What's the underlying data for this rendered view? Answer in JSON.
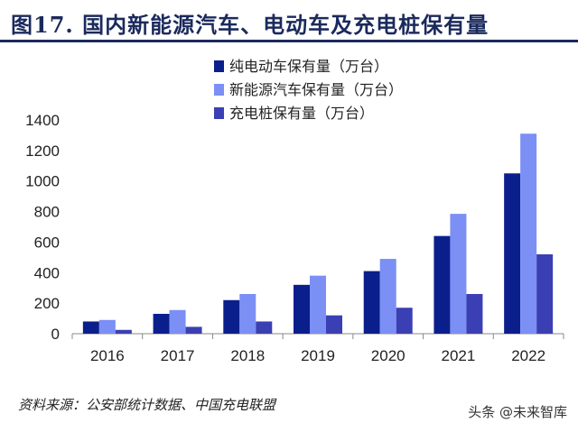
{
  "header": {
    "title": "图17. 国内新能源汽车、电动车及充电桩保有量"
  },
  "chart_data": {
    "type": "bar",
    "categories": [
      "2016",
      "2017",
      "2018",
      "2019",
      "2020",
      "2021",
      "2022"
    ],
    "series": [
      {
        "name": "纯电动车保有量（万台）",
        "color": "#0b1f8c",
        "values": [
          80,
          130,
          220,
          320,
          410,
          640,
          1050
        ]
      },
      {
        "name": "新能源汽车保有量（万台）",
        "color": "#7b8ff5",
        "values": [
          90,
          155,
          260,
          380,
          490,
          785,
          1310
        ]
      },
      {
        "name": "充电桩保有量（万台）",
        "color": "#3b3fb4",
        "values": [
          25,
          45,
          80,
          120,
          170,
          260,
          520
        ]
      }
    ],
    "ylim": [
      0,
      1400
    ],
    "yticks": [
      0,
      200,
      400,
      600,
      800,
      1000,
      1200,
      1400
    ],
    "grid": false,
    "legend_position": "top-center",
    "xlabel": "",
    "ylabel": ""
  },
  "footer": {
    "source": "资料来源：公安部统计数据、中国充电联盟"
  },
  "watermark": {
    "text": "头条 @未来智库"
  }
}
